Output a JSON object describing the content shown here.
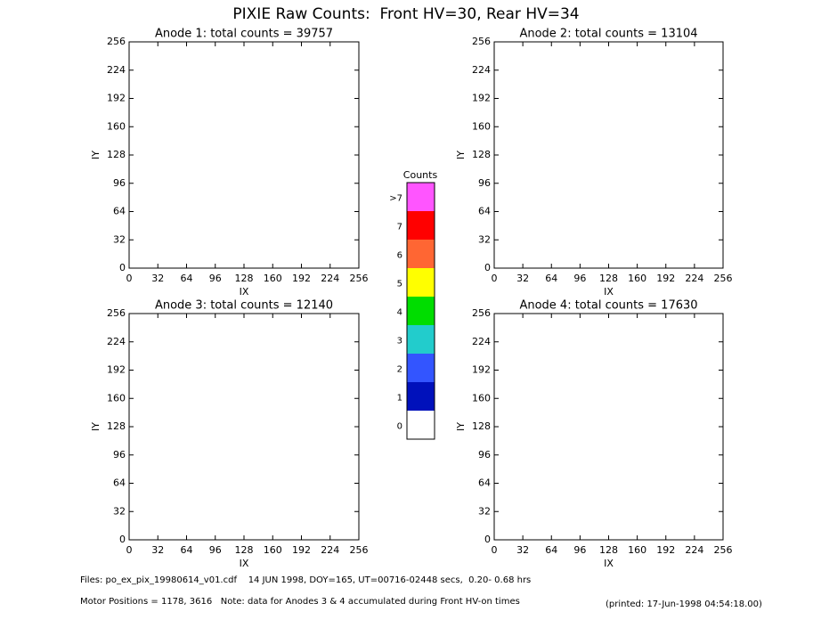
{
  "title": "PIXIE Raw Counts:  Front HV=30, Rear HV=34",
  "chart_data": [
    {
      "type": "heatmap",
      "title": "Anode 1: total counts = 39757",
      "xlabel": "IX",
      "ylabel": "IY",
      "xlim": [
        0,
        256
      ],
      "ylim": [
        0,
        256
      ],
      "xticks": [
        0,
        32,
        64,
        96,
        128,
        160,
        192,
        224,
        256
      ],
      "yticks": [
        0,
        32,
        64,
        96,
        128,
        160,
        192,
        224,
        256
      ]
    },
    {
      "type": "heatmap",
      "title": "Anode 2: total counts = 13104",
      "xlabel": "IX",
      "ylabel": "IY",
      "xlim": [
        0,
        256
      ],
      "ylim": [
        0,
        256
      ],
      "xticks": [
        0,
        32,
        64,
        96,
        128,
        160,
        192,
        224,
        256
      ],
      "yticks": [
        0,
        32,
        64,
        96,
        128,
        160,
        192,
        224,
        256
      ]
    },
    {
      "type": "heatmap",
      "title": "Anode 3: total counts = 12140",
      "xlabel": "IX",
      "ylabel": "IY",
      "xlim": [
        0,
        256
      ],
      "ylim": [
        0,
        256
      ],
      "xticks": [
        0,
        32,
        64,
        96,
        128,
        160,
        192,
        224,
        256
      ],
      "yticks": [
        0,
        32,
        64,
        96,
        128,
        160,
        192,
        224,
        256
      ]
    },
    {
      "type": "heatmap",
      "title": "Anode 4: total counts = 17630",
      "xlabel": "IX",
      "ylabel": "IY",
      "xlim": [
        0,
        256
      ],
      "ylim": [
        0,
        256
      ],
      "xticks": [
        0,
        32,
        64,
        96,
        128,
        160,
        192,
        224,
        256
      ],
      "yticks": [
        0,
        32,
        64,
        96,
        128,
        160,
        192,
        224,
        256
      ]
    }
  ],
  "colorbar": {
    "title": "Counts",
    "ticks": [
      0,
      1,
      2,
      3,
      4,
      5,
      6,
      7,
      {
        "value": 8,
        "label": ">7"
      }
    ],
    "colors": [
      "#ffffff",
      "#0011bb",
      "#3355ff",
      "#22cccc",
      "#00dd00",
      "#ffff00",
      "#ff6633",
      "#ff0000",
      "#ff55ff"
    ]
  },
  "footer": {
    "files": "Files: po_ex_pix_19980614_v01.cdf    14 JUN 1998, DOY=165, UT=00716-02448 secs,  0.20- 0.68 hrs",
    "motor": "Motor Positions = 1178, 3616   Note: data for Anodes 3 & 4 accumulated during Front HV-on times",
    "printed": "(printed: 17-Jun-1998 04:54:18.00)"
  }
}
